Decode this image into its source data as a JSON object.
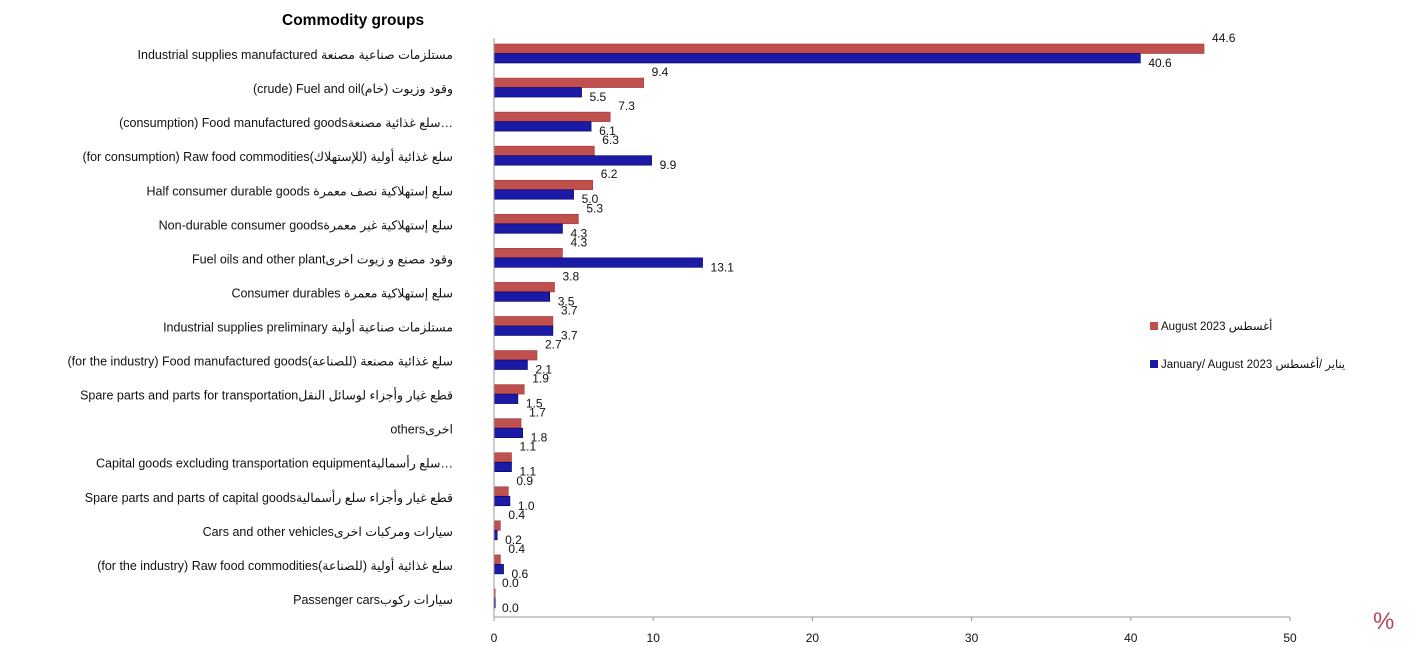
{
  "chart_data": {
    "type": "bar",
    "orientation": "horizontal",
    "title": "Commodity groups",
    "unit_label": "%",
    "xlim": [
      0,
      50
    ],
    "x_ticks": [
      0,
      10,
      20,
      30,
      40,
      50
    ],
    "grid": false,
    "legend_position": "right",
    "categories": [
      "Industrial supplies manufactured مستلزمات صناعية مصنعة",
      "(crude) Fuel and oilوقود وزيوت (خام)",
      "(consumption) Food manufactured goodsسلع غذائية مصنعة…",
      "(for consumption) Raw food commoditiesسلع غذائية أولية (للإستهلاك)",
      "Half consumer durable goods سلع إستهلاكية نصف معمرة",
      "Non-durable consumer goodsسلع إستهلاكية غير معمرة",
      "Fuel oils and other plantوقود مصنع و زيوت اخرى",
      "Consumer durables سلع إستهلاكية معمرة",
      "Industrial supplies preliminary مستلزمات صناعية أولية",
      "(for the industry) Food manufactured goodsسلع غذائية مصنعة (للصناعة)",
      "Spare parts and parts for transportationقطع غيار وأجزاء لوسائل النقل",
      "othersاخرى",
      "Capital goods excluding transportation equipmentسلع رأسمالية…",
      "Spare parts and parts of capital goodsقطع غيار وأجزاء سلع رأسمالية",
      "Cars and other vehiclesسيارات ومركبات اخرى",
      "(for the industry) Raw food commoditiesسلع غذائية أولية (للصناعة)",
      "Passenger carsسيارات ركوب"
    ],
    "series": [
      {
        "name": "August 2023 أغسطس",
        "color": "#c0504d",
        "values": [
          44.6,
          9.4,
          7.3,
          6.3,
          6.2,
          5.3,
          4.3,
          3.8,
          3.7,
          2.7,
          1.9,
          1.7,
          1.1,
          0.9,
          0.4,
          0.4,
          0.0
        ],
        "labels": [
          "44.6",
          "9.4",
          "7.3",
          "6.3",
          "6.2",
          "5.3",
          "4.3",
          "3.8",
          "3.7",
          "2.7",
          "1.9",
          "1.7",
          "1.1",
          "0.9",
          "0.4",
          "0.4",
          "0.0"
        ]
      },
      {
        "name": "January/ August 2023 يناير /أغسطس",
        "color": "#1a1aa6",
        "values": [
          40.6,
          5.5,
          6.1,
          9.9,
          5.0,
          4.3,
          13.1,
          3.5,
          3.7,
          2.1,
          1.5,
          1.8,
          1.1,
          1.0,
          0.2,
          0.6,
          0.0
        ],
        "labels": [
          "40.6",
          "5.5",
          "6.1",
          "9.9",
          "5.0",
          "4.3",
          "13.1",
          "3.5",
          "3.7",
          "2.1",
          "1.5",
          "1.8",
          "1.1",
          "1.0",
          "0.2",
          "0.6",
          "0.0"
        ]
      }
    ]
  }
}
